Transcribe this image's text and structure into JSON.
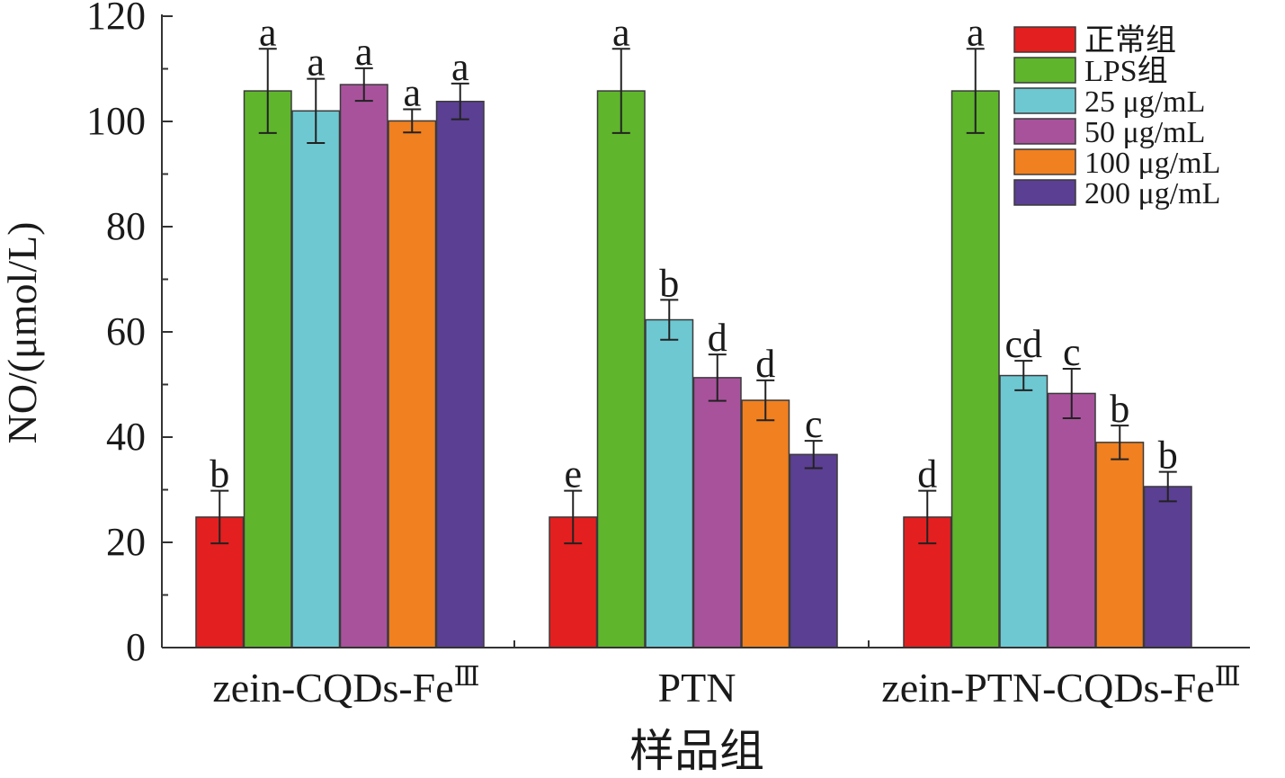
{
  "chart_data": {
    "type": "bar",
    "title": "",
    "xlabel": "样品组",
    "ylabel": "NO/(μmol/L)",
    "ylim": [
      0,
      120
    ],
    "yticks": [
      0,
      20,
      40,
      60,
      80,
      100,
      120
    ],
    "grid": false,
    "legend_position": "top-right",
    "categories": [
      {
        "pre": "zein-CQDs-Fe",
        "sup": "Ⅲ"
      },
      {
        "pre": "PTN",
        "sup": ""
      },
      {
        "pre": "zein-PTN-CQDs-Fe",
        "sup": "Ⅲ"
      }
    ],
    "series": [
      {
        "name": "正常组",
        "color": "#e41f1f",
        "values": [
          24.8,
          24.8,
          24.8
        ],
        "errors": [
          5.0,
          5.0,
          5.0
        ],
        "letters": [
          "b",
          "e",
          "d"
        ]
      },
      {
        "name": "LPS组",
        "color": "#5fb52c",
        "values": [
          105.8,
          105.8,
          105.8
        ],
        "errors": [
          8.0,
          8.0,
          8.0
        ],
        "letters": [
          "a",
          "a",
          "a"
        ]
      },
      {
        "name": "25 μg/mL",
        "color": "#6ec8d2",
        "values": [
          102.0,
          62.3,
          51.7
        ],
        "errors": [
          6.1,
          3.8,
          2.8
        ],
        "letters": [
          "a",
          "b",
          "cd"
        ]
      },
      {
        "name": "50 μg/mL",
        "color": "#a8529c",
        "values": [
          107.0,
          51.3,
          48.3
        ],
        "errors": [
          3.1,
          4.4,
          4.7
        ],
        "letters": [
          "a",
          "d",
          "c"
        ]
      },
      {
        "name": "100 μg/mL",
        "color": "#f08020",
        "values": [
          100.1,
          47.0,
          39.0
        ],
        "errors": [
          2.2,
          3.8,
          3.2
        ],
        "letters": [
          "a",
          "d",
          "b"
        ]
      },
      {
        "name": "200 μg/mL",
        "color": "#5b3f93",
        "values": [
          103.8,
          36.7,
          30.6
        ],
        "errors": [
          3.4,
          2.6,
          2.8
        ],
        "letters": [
          "a",
          "c",
          "b"
        ]
      }
    ]
  }
}
